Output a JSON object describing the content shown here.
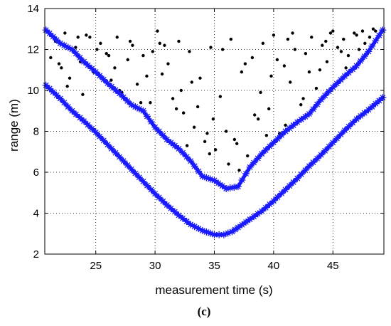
{
  "chart_data": {
    "type": "scatter",
    "xlabel": "measurement time (s)",
    "ylabel": "range (m)",
    "panel_label": "(c)",
    "xlim": [
      20.7,
      49.3
    ],
    "ylim": [
      2,
      14
    ],
    "x_ticks": [
      25,
      30,
      35,
      40,
      45
    ],
    "y_ticks": [
      2,
      4,
      6,
      8,
      10,
      12,
      14
    ],
    "x_tick_labels": [
      "25",
      "30",
      "35",
      "40",
      "45"
    ],
    "y_tick_labels": [
      "2",
      "4",
      "6",
      "8",
      "10",
      "12",
      "14"
    ],
    "grid": true,
    "colors": {
      "track": "#1a1aff",
      "dots": "#000000"
    },
    "series": [
      {
        "marker": "star",
        "x": [
          20.8,
          22,
          23,
          24,
          25,
          26,
          27,
          28,
          29,
          30,
          31,
          32,
          33,
          34,
          35,
          35.8,
          36.5,
          37,
          38,
          39,
          40,
          41,
          42,
          43,
          44,
          45,
          46,
          47,
          48,
          49.2
        ],
        "y": [
          10.25,
          9.6,
          9.0,
          8.5,
          7.95,
          7.35,
          6.75,
          6.15,
          5.55,
          4.95,
          4.4,
          3.9,
          3.45,
          3.15,
          2.95,
          2.95,
          3.1,
          3.3,
          3.7,
          4.1,
          4.6,
          5.15,
          5.7,
          6.3,
          6.85,
          7.45,
          8.05,
          8.6,
          9.05,
          9.65
        ]
      },
      {
        "marker": "star",
        "x": [
          20.8,
          22,
          23,
          24,
          25,
          26,
          27,
          28,
          29,
          30,
          31,
          32,
          33,
          34,
          35,
          36,
          37,
          38,
          39,
          40,
          41,
          42,
          43,
          44,
          45,
          46,
          47,
          48,
          49.2
        ],
        "y": [
          12.95,
          12.3,
          12.0,
          11.4,
          10.9,
          10.35,
          9.85,
          9.3,
          9.0,
          8.2,
          7.6,
          7.15,
          6.55,
          5.8,
          5.6,
          5.2,
          5.3,
          6.25,
          6.9,
          7.45,
          8.0,
          8.45,
          8.85,
          9.55,
          10.15,
          10.7,
          11.2,
          11.9,
          12.95
        ]
      },
      {
        "marker": "dot",
        "x": [
          21.2,
          21.6,
          22.1,
          22.4,
          22.8,
          23.3,
          23.7,
          24.2,
          24.8,
          25.4,
          25.9,
          26.3,
          26.8,
          27.2,
          27.7,
          28.1,
          28.5,
          29.0,
          29.6,
          30.2,
          30.6,
          31.1,
          31.5,
          32.0,
          32.4,
          32.9,
          33.3,
          33.8,
          34.2,
          34.7,
          35.1,
          35.5,
          36.0,
          36.4,
          36.9,
          37.3,
          37.8,
          38.2,
          38.7,
          39.1,
          39.6,
          40.0,
          40.5,
          40.9,
          41.4,
          41.8,
          42.3,
          42.7,
          43.2,
          43.6,
          44.1,
          44.5,
          45.0,
          45.4,
          45.9,
          46.3,
          46.8,
          47.2,
          47.7,
          48.1,
          48.6,
          22.6,
          23.9,
          25.1,
          26.6,
          27.9,
          29.3,
          30.8,
          32.2,
          33.6,
          34.9,
          36.2,
          37.6,
          38.9,
          40.3,
          41.6,
          43.0,
          44.4,
          45.7,
          47.0,
          48.4,
          21.9,
          24.5,
          27.0,
          29.8,
          31.8,
          33.1,
          34.4,
          35.7,
          37.1,
          38.4,
          39.8,
          41.2,
          42.5,
          43.9,
          46.1,
          47.5,
          36.7,
          34.6,
          32.7,
          39.4,
          41.0,
          28.8,
          44.8,
          23.5,
          26.1,
          30.4
        ],
        "y": [
          11.6,
          12.4,
          11.1,
          12.8,
          10.6,
          12.1,
          11.4,
          12.7,
          10.9,
          12.3,
          11.8,
          10.5,
          12.6,
          9.9,
          11.5,
          12.2,
          10.3,
          11.7,
          9.4,
          12.9,
          10.8,
          11.3,
          9.6,
          12.4,
          8.9,
          11.9,
          8.2,
          10.6,
          7.5,
          12.1,
          7.1,
          9.7,
          8.0,
          12.5,
          7.4,
          10.9,
          6.8,
          11.6,
          8.6,
          12.3,
          9.1,
          12.7,
          7.9,
          11.2,
          10.4,
          12.0,
          9.3,
          11.8,
          12.6,
          10.1,
          12.2,
          11.4,
          12.9,
          12.1,
          12.5,
          11.7,
          12.8,
          12.0,
          12.3,
          12.6,
          12.9,
          10.2,
          9.8,
          12.0,
          11.1,
          12.4,
          10.7,
          12.2,
          10.0,
          9.2,
          8.6,
          6.4,
          11.3,
          9.9,
          11.5,
          12.8,
          10.9,
          12.4,
          11.9,
          12.7,
          13.0,
          11.3,
          12.6,
          10.0,
          11.9,
          9.1,
          10.4,
          7.9,
          12.0,
          6.1,
          8.8,
          10.7,
          12.5,
          9.6,
          11.0,
          11.1,
          12.9,
          7.6,
          6.9,
          7.3,
          7.8,
          8.3,
          9.4,
          12.8,
          12.6,
          11.7,
          12.3
        ]
      }
    ]
  }
}
